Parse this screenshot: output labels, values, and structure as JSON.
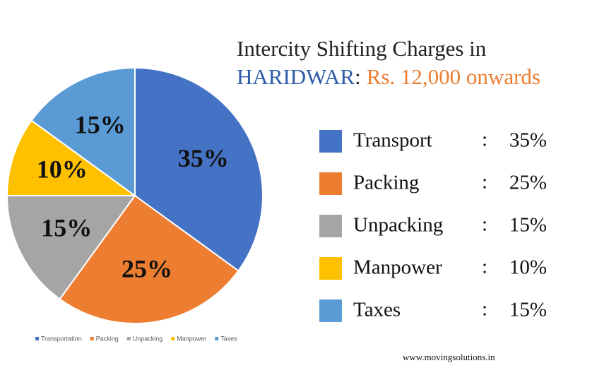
{
  "chart_data": {
    "type": "pie",
    "categories": [
      "Transportation",
      "Packing",
      "Unpacking",
      "Manpower",
      "Taxes"
    ],
    "values": [
      35,
      25,
      15,
      10,
      15
    ],
    "value_labels": [
      "35%",
      "25%",
      "15%",
      "10%",
      "15%"
    ],
    "colors": [
      "#4472c4",
      "#ed7d31",
      "#a5a5a5",
      "#ffc000",
      "#5b9bd5"
    ]
  },
  "title": {
    "line1": "Intercity Shifting Charges in",
    "city": "HARIDWAR",
    "separator": ":",
    "price": "Rs. 12,000 onwards"
  },
  "summary_legend": {
    "labels": [
      "Transport",
      "Packing",
      "Unpacking",
      "Manpower",
      "Taxes"
    ],
    "separator": ":"
  },
  "footer": "www.movingsolutions.in"
}
